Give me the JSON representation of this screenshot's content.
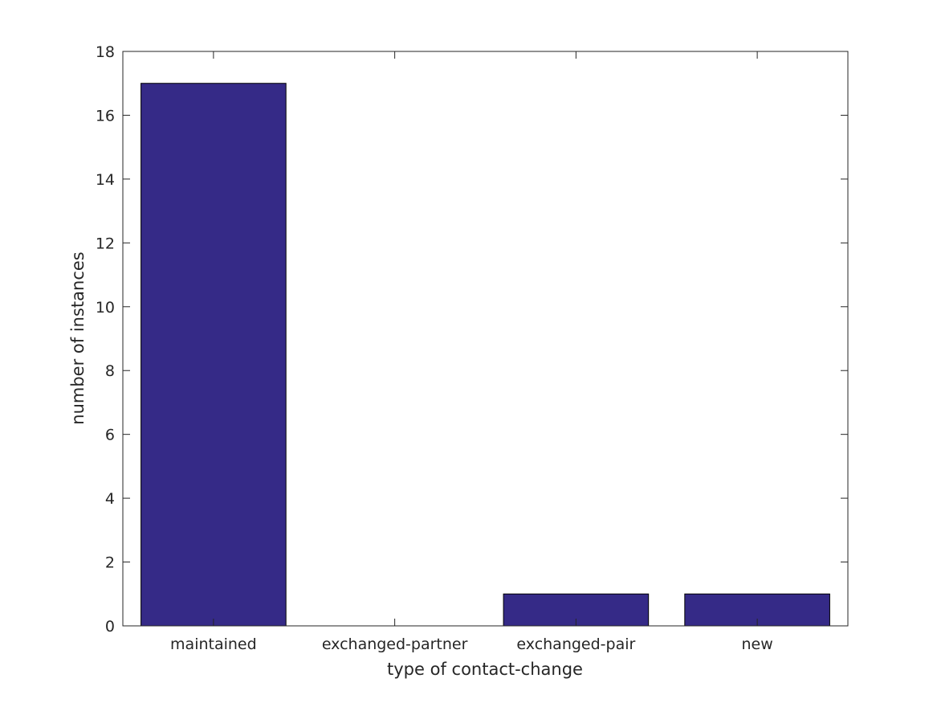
{
  "chart_data": {
    "type": "bar",
    "title": "",
    "xlabel": "type of contact-change",
    "ylabel": "number of instances",
    "categories": [
      "maintained",
      "exchanged-partner",
      "exchanged-pair",
      "new"
    ],
    "values": [
      17,
      0,
      1,
      1
    ],
    "ylim": [
      0,
      18
    ],
    "yticks": [
      0,
      2,
      4,
      6,
      8,
      10,
      12,
      14,
      16,
      18
    ],
    "grid": false,
    "legend": "none",
    "bar_color": "#352a87",
    "bar_edge_color": "#000000"
  }
}
